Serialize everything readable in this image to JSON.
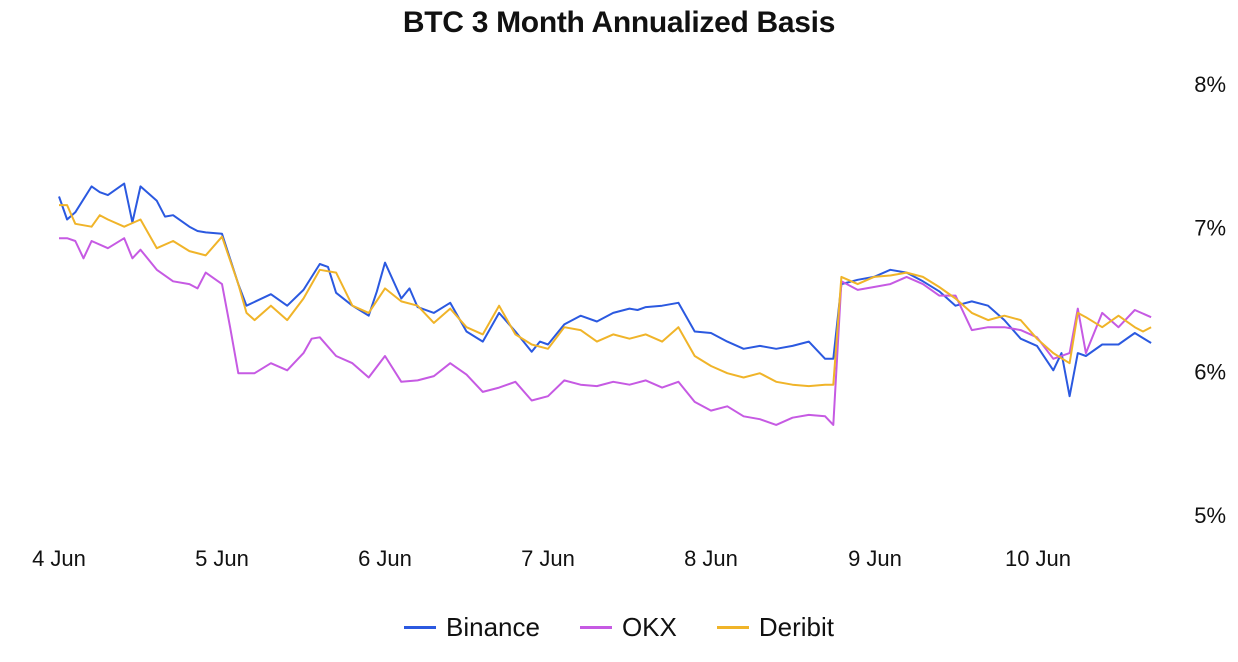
{
  "chart_data": {
    "type": "line",
    "title": "BTC 3 Month Annualized Basis",
    "xlabel": "",
    "ylabel": "",
    "x_tick_labels": [
      "4 Jun",
      "5 Jun",
      "6 Jun",
      "7 Jun",
      "8 Jun",
      "9 Jun",
      "10 Jun"
    ],
    "y_tick_labels": [
      "8%",
      "7%",
      "6%",
      "5%"
    ],
    "y_ticks": [
      8,
      7,
      6,
      5
    ],
    "ylim": [
      4.8,
      8.0
    ],
    "xlim": [
      3.97,
      10.72
    ],
    "x_unit": "day of June",
    "y_axis_position": "right",
    "grid": false,
    "legend_position": "bottom-center",
    "series": [
      {
        "name": "Binance",
        "color": "#2b59e0",
        "x": [
          4.0,
          4.05,
          4.1,
          4.2,
          4.25,
          4.3,
          4.4,
          4.45,
          4.5,
          4.6,
          4.65,
          4.7,
          4.8,
          4.85,
          4.9,
          5.0,
          5.1,
          5.15,
          5.3,
          5.4,
          5.5,
          5.6,
          5.65,
          5.7,
          5.8,
          5.9,
          5.95,
          6.0,
          6.1,
          6.15,
          6.2,
          6.3,
          6.4,
          6.5,
          6.6,
          6.7,
          6.8,
          6.9,
          6.95,
          7.0,
          7.1,
          7.2,
          7.3,
          7.4,
          7.5,
          7.55,
          7.6,
          7.7,
          7.8,
          7.9,
          8.0,
          8.1,
          8.2,
          8.3,
          8.4,
          8.5,
          8.6,
          8.7,
          8.75,
          8.8,
          8.9,
          9.0,
          9.1,
          9.2,
          9.3,
          9.4,
          9.5,
          9.6,
          9.7,
          9.8,
          9.9,
          10.0,
          10.1,
          10.15,
          10.2,
          10.25,
          10.3,
          10.4,
          10.5,
          10.6,
          10.7
        ],
        "values": [
          7.21,
          7.05,
          7.1,
          7.28,
          7.24,
          7.22,
          7.3,
          7.03,
          7.28,
          7.18,
          7.07,
          7.08,
          7.0,
          6.97,
          6.96,
          6.95,
          6.6,
          6.45,
          6.53,
          6.45,
          6.56,
          6.74,
          6.72,
          6.54,
          6.45,
          6.38,
          6.55,
          6.75,
          6.5,
          6.57,
          6.44,
          6.4,
          6.47,
          6.27,
          6.2,
          6.4,
          6.27,
          6.13,
          6.2,
          6.18,
          6.32,
          6.38,
          6.34,
          6.4,
          6.43,
          6.42,
          6.44,
          6.45,
          6.47,
          6.27,
          6.26,
          6.2,
          6.15,
          6.17,
          6.15,
          6.17,
          6.2,
          6.08,
          6.08,
          6.6,
          6.63,
          6.65,
          6.7,
          6.68,
          6.62,
          6.55,
          6.45,
          6.48,
          6.45,
          6.35,
          6.22,
          6.17,
          6.0,
          6.12,
          5.82,
          6.12,
          6.1,
          6.18,
          6.18,
          6.26,
          6.19
        ]
      },
      {
        "name": "OKX",
        "color": "#c65ae3",
        "x": [
          4.0,
          4.05,
          4.1,
          4.15,
          4.2,
          4.3,
          4.4,
          4.45,
          4.5,
          4.6,
          4.7,
          4.8,
          4.85,
          4.9,
          5.0,
          5.05,
          5.1,
          5.2,
          5.3,
          5.4,
          5.5,
          5.55,
          5.6,
          5.7,
          5.8,
          5.9,
          6.0,
          6.1,
          6.2,
          6.3,
          6.4,
          6.5,
          6.6,
          6.7,
          6.8,
          6.9,
          7.0,
          7.1,
          7.2,
          7.3,
          7.4,
          7.5,
          7.6,
          7.7,
          7.8,
          7.9,
          8.0,
          8.1,
          8.2,
          8.3,
          8.4,
          8.5,
          8.6,
          8.7,
          8.75,
          8.8,
          8.9,
          9.0,
          9.1,
          9.2,
          9.3,
          9.4,
          9.5,
          9.6,
          9.7,
          9.8,
          9.9,
          10.0,
          10.1,
          10.2,
          10.25,
          10.3,
          10.4,
          10.5,
          10.6,
          10.7
        ],
        "values": [
          6.92,
          6.92,
          6.9,
          6.78,
          6.9,
          6.85,
          6.92,
          6.78,
          6.84,
          6.7,
          6.62,
          6.6,
          6.57,
          6.68,
          6.6,
          6.3,
          5.98,
          5.98,
          6.05,
          6.0,
          6.12,
          6.22,
          6.23,
          6.1,
          6.05,
          5.95,
          6.1,
          5.92,
          5.93,
          5.96,
          6.05,
          5.97,
          5.85,
          5.88,
          5.92,
          5.79,
          5.82,
          5.93,
          5.9,
          5.89,
          5.92,
          5.9,
          5.93,
          5.88,
          5.92,
          5.78,
          5.72,
          5.75,
          5.68,
          5.66,
          5.62,
          5.67,
          5.69,
          5.68,
          5.62,
          6.62,
          6.56,
          6.58,
          6.6,
          6.65,
          6.6,
          6.52,
          6.52,
          6.28,
          6.3,
          6.3,
          6.28,
          6.23,
          6.08,
          6.12,
          6.43,
          6.12,
          6.4,
          6.3,
          6.42,
          6.37
        ]
      },
      {
        "name": "Deribit",
        "color": "#f0b429",
        "x": [
          4.0,
          4.05,
          4.1,
          4.2,
          4.25,
          4.3,
          4.4,
          4.5,
          4.6,
          4.7,
          4.8,
          4.9,
          5.0,
          5.1,
          5.15,
          5.2,
          5.3,
          5.4,
          5.5,
          5.6,
          5.7,
          5.8,
          5.9,
          6.0,
          6.1,
          6.2,
          6.3,
          6.4,
          6.5,
          6.6,
          6.7,
          6.8,
          6.9,
          7.0,
          7.1,
          7.2,
          7.3,
          7.4,
          7.5,
          7.6,
          7.7,
          7.8,
          7.9,
          8.0,
          8.1,
          8.2,
          8.3,
          8.4,
          8.5,
          8.6,
          8.7,
          8.75,
          8.8,
          8.9,
          9.0,
          9.1,
          9.2,
          9.3,
          9.4,
          9.5,
          9.6,
          9.7,
          9.8,
          9.9,
          10.0,
          10.1,
          10.2,
          10.25,
          10.3,
          10.4,
          10.5,
          10.6,
          10.65,
          10.7
        ],
        "values": [
          7.15,
          7.15,
          7.02,
          7.0,
          7.08,
          7.05,
          7.0,
          7.05,
          6.85,
          6.9,
          6.83,
          6.8,
          6.93,
          6.6,
          6.4,
          6.35,
          6.45,
          6.35,
          6.5,
          6.7,
          6.68,
          6.45,
          6.4,
          6.57,
          6.48,
          6.45,
          6.33,
          6.43,
          6.3,
          6.25,
          6.45,
          6.25,
          6.18,
          6.15,
          6.3,
          6.28,
          6.2,
          6.25,
          6.22,
          6.25,
          6.2,
          6.3,
          6.1,
          6.03,
          5.98,
          5.95,
          5.98,
          5.92,
          5.9,
          5.89,
          5.9,
          5.9,
          6.65,
          6.6,
          6.65,
          6.66,
          6.68,
          6.65,
          6.58,
          6.5,
          6.4,
          6.35,
          6.38,
          6.35,
          6.22,
          6.12,
          6.05,
          6.4,
          6.37,
          6.3,
          6.38,
          6.3,
          6.27,
          6.3
        ]
      }
    ]
  }
}
